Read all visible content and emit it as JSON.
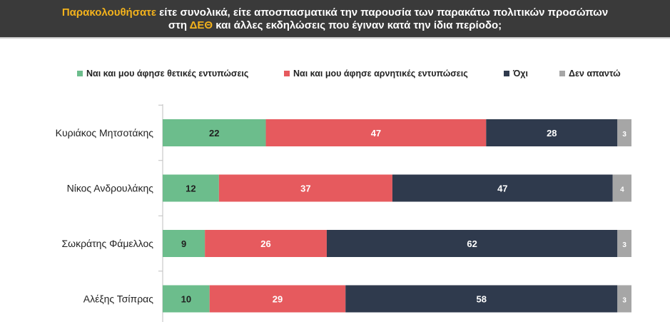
{
  "header": {
    "line1_highlight": "Παρακολουθήσατε",
    "line1_rest": " είτε συνολικά, είτε αποσπασματικά την παρουσία των παρακάτω πολιτικών προσώπων",
    "line2_pre": "στη ",
    "line2_highlight": "ΔΕΘ",
    "line2_rest": " και άλλες εκδηλώσεις που έγιναν κατά την ίδια περίοδο;"
  },
  "colors": {
    "header_bg": "#3a3a3a",
    "highlight": "#f3b21c"
  },
  "chart_data": {
    "type": "bar",
    "orientation": "horizontal",
    "stacked": true,
    "legend_position": "top",
    "categories": [
      "Κυριάκος Μητσοτάκης",
      "Νίκος Ανδρουλάκης",
      "Σωκράτης Φάμελλος",
      "Αλέξης Τσίπρας"
    ],
    "series": [
      {
        "name": "Ναι και μου άφησε θετικές εντυπώσεις",
        "color": "#6cbd8c",
        "values": [
          22,
          12,
          9,
          10
        ]
      },
      {
        "name": "Ναι και μου άφησε αρνητικές εντυπώσεις",
        "color": "#e65a5e",
        "values": [
          47,
          37,
          26,
          29
        ]
      },
      {
        "name": "Όχι",
        "color": "#2f3a4d",
        "values": [
          28,
          47,
          62,
          58
        ]
      },
      {
        "name": "Δεν απαντώ",
        "color": "#a6a6a6",
        "values": [
          3,
          4,
          3,
          3
        ]
      }
    ],
    "xlim": [
      0,
      100
    ],
    "grid": false
  }
}
